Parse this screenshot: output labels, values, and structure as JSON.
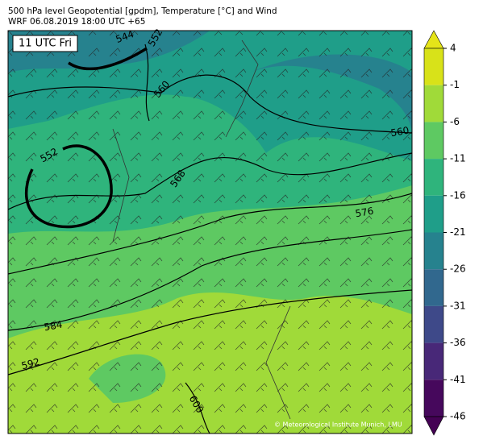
{
  "header": {
    "title": "500 hPa level Geopotential [gpdm], Temperature [°C] and Wind",
    "subtitle": "WRF 06.08.2019 18:00 UTC +65"
  },
  "map": {
    "time_label": "11 UTC Fri",
    "contour_labels": [
      "544",
      "552",
      "560",
      "560",
      "552",
      "568",
      "576",
      "584",
      "592",
      "600"
    ],
    "credit": "© Meteorological Institute Munich, LMU"
  },
  "colorbar": {
    "ticks": [
      4,
      -1,
      -6,
      -11,
      -16,
      -21,
      -26,
      -31,
      -36,
      -41,
      -46
    ],
    "colors": [
      "#e5e419",
      "#d8e219",
      "#a0da39",
      "#5ec962",
      "#2fb47c",
      "#1f9e89",
      "#26828e",
      "#31688e",
      "#3e4989",
      "#482878",
      "#46085c",
      "#440154"
    ]
  }
}
